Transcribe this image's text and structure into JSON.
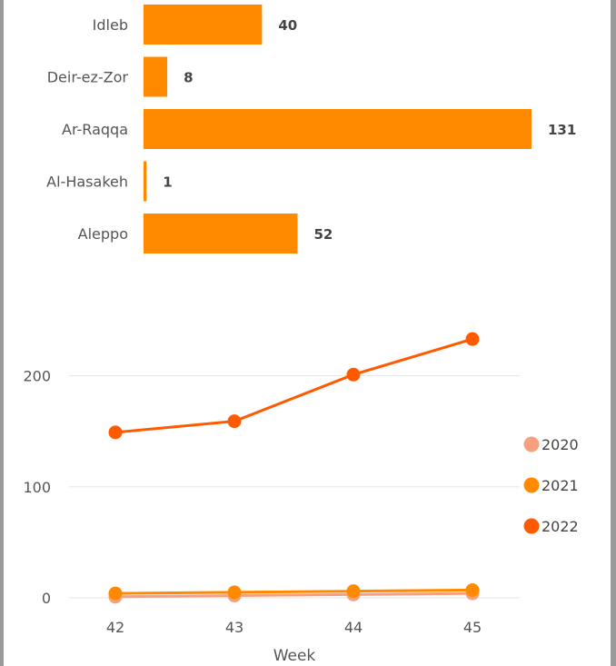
{
  "chart_data": [
    {
      "type": "bar",
      "orientation": "horizontal",
      "categories": [
        "Idleb",
        "Deir-ez-Zor",
        "Ar-Raqqa",
        "Al-Hasakeh",
        "Aleppo"
      ],
      "values": [
        40,
        8,
        131,
        1,
        52
      ],
      "data_labels": [
        "40",
        "8",
        "131",
        "1",
        "52"
      ],
      "color": "#FF8A00",
      "title": "",
      "xlabel": "",
      "ylabel": ""
    },
    {
      "type": "line",
      "x": [
        42,
        43,
        44,
        45
      ],
      "x_tick_labels": [
        "42",
        "43",
        "44",
        "45"
      ],
      "xlabel": "Week",
      "ylabel": "",
      "ylim": [
        0,
        230
      ],
      "y_ticks": [
        0,
        100,
        200
      ],
      "y_tick_labels": [
        "0",
        "100",
        "200"
      ],
      "grid": true,
      "legend_position": "right",
      "series": [
        {
          "name": "2020",
          "color": "#F6A07F",
          "values": [
            1,
            2,
            3,
            4
          ]
        },
        {
          "name": "2021",
          "color": "#FF8A00",
          "values": [
            4,
            5,
            6,
            7
          ]
        },
        {
          "name": "2022",
          "color": "#FF5A00",
          "values": [
            149,
            159,
            201,
            233
          ]
        }
      ]
    }
  ]
}
